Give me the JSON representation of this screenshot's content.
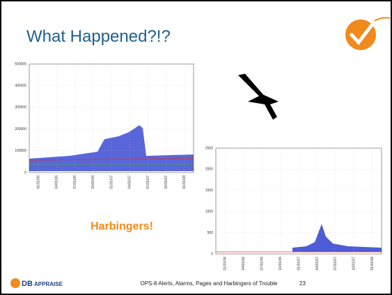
{
  "title": "What Happened?!?",
  "callout": "Harbingers!",
  "charts": [
    {
      "ylim": [
        0,
        500000
      ],
      "yticks": [
        0,
        100000,
        200000,
        300000,
        400000,
        500000
      ],
      "xticks": [
        "01/01/06",
        "04/01/06",
        "07/01/06",
        "10/01/06",
        "01/01/07",
        "04/01/07",
        "07/01/07",
        "10/01/07",
        "01/01/08"
      ]
    },
    {
      "ylim": [
        0,
        2500
      ],
      "yticks": [
        0,
        500,
        1000,
        1500,
        2000,
        2500
      ],
      "xticks": [
        "01/01/06",
        "04/01/06",
        "07/01/06",
        "10/01/06",
        "01/01/07",
        "04/01/07",
        "07/01/07",
        "10/01/07",
        "01/01/08"
      ]
    }
  ],
  "footer": {
    "logo_main": "DB",
    "logo_sub": "APPRAISE",
    "text": "OPS-8 Alerts, Alarms, Pages and Harbingers of Trouble",
    "page": "23"
  }
}
